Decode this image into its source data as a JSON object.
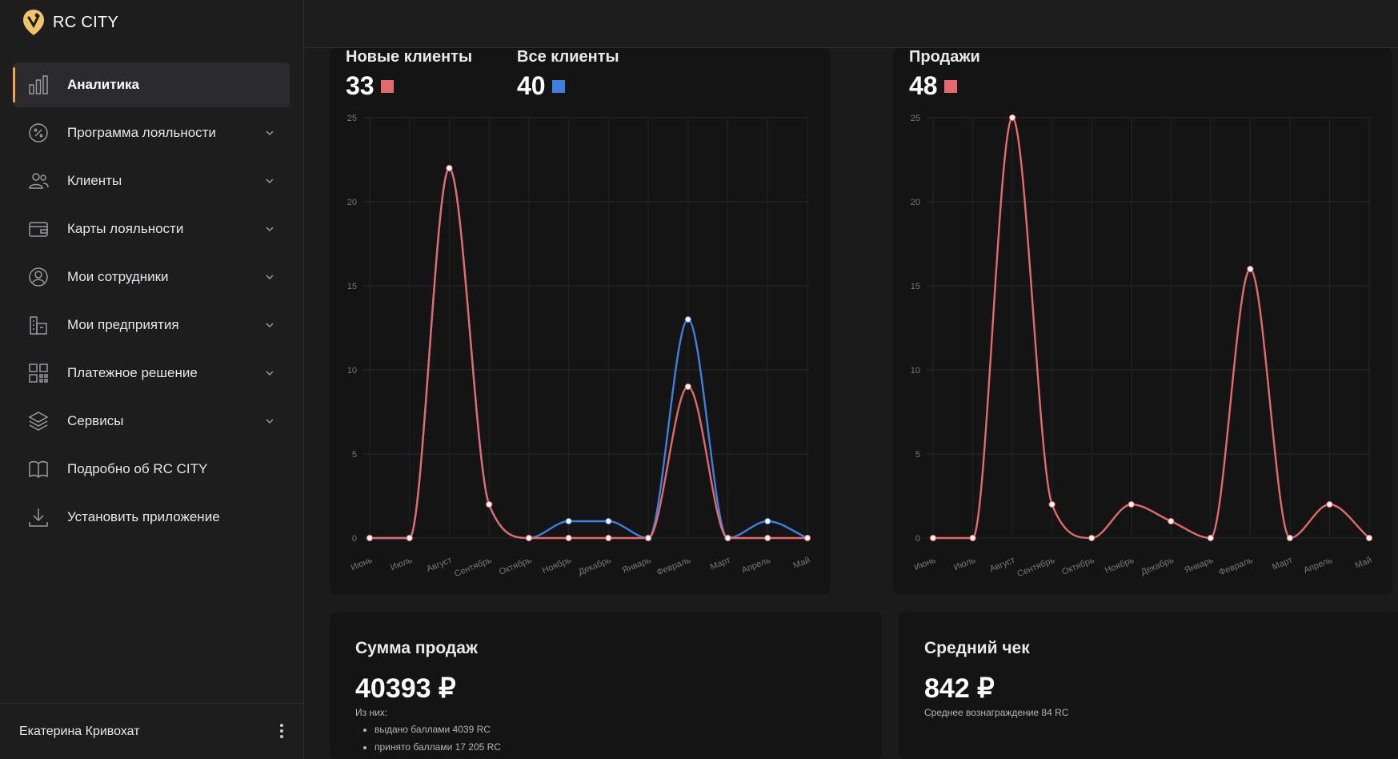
{
  "brand": {
    "name": "RC CITY"
  },
  "sidebar": {
    "items": [
      {
        "label": "Аналитика"
      },
      {
        "label": "Программа лояльности"
      },
      {
        "label": "Клиенты"
      },
      {
        "label": "Карты лояльности"
      },
      {
        "label": "Мои сотрудники"
      },
      {
        "label": "Мои предприятия"
      },
      {
        "label": "Платежное решение"
      },
      {
        "label": "Сервисы"
      },
      {
        "label": "Подробно об RC CITY"
      },
      {
        "label": "Установить приложение"
      }
    ]
  },
  "user": {
    "name": "Екатерина Кривохат"
  },
  "colors": {
    "accent": "#f0a54a",
    "red": "#e26a6a",
    "blue": "#3f7fe0",
    "card": "#141415"
  },
  "stats": {
    "new_clients": {
      "title": "Новые клиенты",
      "value": "33"
    },
    "all_clients": {
      "title": "Все клиенты",
      "value": "40"
    },
    "sales": {
      "title": "Продажи",
      "value": "48"
    }
  },
  "chart_data": [
    {
      "type": "line",
      "x": [
        "Июнь",
        "Июль",
        "Август",
        "Сентябрь",
        "Октябрь",
        "Ноябрь",
        "Декабрь",
        "Январь",
        "Февраль",
        "Март",
        "Апрель",
        "Май"
      ],
      "ylim": [
        0,
        25
      ],
      "yticks": [
        0,
        5,
        10,
        15,
        20,
        25
      ],
      "grid": true,
      "series": [
        {
          "name": "Все клиенты",
          "color": "#3f7fe0",
          "values": [
            0,
            0,
            22,
            2,
            0,
            1,
            1,
            0,
            13,
            0,
            1,
            0
          ]
        },
        {
          "name": "Новые клиенты",
          "color": "#e26a6a",
          "values": [
            0,
            0,
            22,
            2,
            0,
            0,
            0,
            0,
            9,
            0,
            0,
            0
          ]
        }
      ]
    },
    {
      "type": "line",
      "x": [
        "Июнь",
        "Июль",
        "Август",
        "Сентябрь",
        "Октябрь",
        "Ноябрь",
        "Декабрь",
        "Январь",
        "Февраль",
        "Март",
        "Апрель",
        "Май"
      ],
      "ylim": [
        0,
        25
      ],
      "yticks": [
        0,
        5,
        10,
        15,
        20,
        25
      ],
      "grid": true,
      "series": [
        {
          "name": "Продажи",
          "color": "#e26a6a",
          "values": [
            0,
            0,
            25,
            2,
            0,
            2,
            1,
            0,
            16,
            0,
            2,
            0
          ]
        }
      ]
    }
  ],
  "sum": {
    "title": "Сумма продаж",
    "value": "40393 ₽",
    "sub": "Из них:",
    "items": [
      "выдано баллами 4039 RC",
      "принято баллами 17 205 RC"
    ]
  },
  "avg": {
    "title": "Средний чек",
    "value": "842 ₽",
    "sub": "Среднее вознаграждение 84 RC"
  }
}
